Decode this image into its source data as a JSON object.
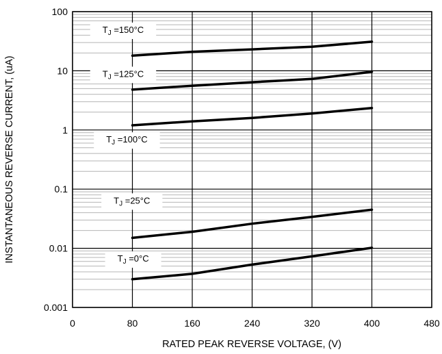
{
  "chart_data": {
    "type": "line",
    "title": "",
    "xlabel": "RATED PEAK REVERSE VOLTAGE, (V)",
    "ylabel": "INSTANTANEOUS REVERSE CURRENT, (uA)",
    "xlim": [
      0,
      480
    ],
    "ylim": [
      0.001,
      100
    ],
    "yscale": "log",
    "grid": true,
    "x_ticks": [
      "0",
      "80",
      "160",
      "240",
      "320",
      "400",
      "480"
    ],
    "y_ticks": [
      "100",
      "10",
      "1",
      "0.1",
      "0.01",
      "0.001"
    ],
    "series": [
      {
        "name": "T",
        "sub": "J",
        "suffix": " =150°C",
        "label_at": {
          "x": 40,
          "y": 50
        },
        "x": [
          80,
          160,
          240,
          320,
          400
        ],
        "values": [
          18,
          21,
          23,
          25.5,
          31
        ]
      },
      {
        "name": "T",
        "sub": "J",
        "suffix": " =125°C",
        "label_at": {
          "x": 40,
          "y": 9
        },
        "x": [
          80,
          160,
          240,
          320,
          400
        ],
        "values": [
          4.8,
          5.6,
          6.4,
          7.3,
          9.6
        ]
      },
      {
        "name": "T",
        "sub": "J",
        "suffix": " =100°C",
        "label_at": {
          "x": 45,
          "y": 0.7
        },
        "x": [
          80,
          160,
          240,
          320,
          400
        ],
        "values": [
          1.2,
          1.4,
          1.6,
          1.9,
          2.35
        ]
      },
      {
        "name": "T",
        "sub": "J",
        "suffix": " =25°C",
        "label_at": {
          "x": 55,
          "y": 0.065
        },
        "x": [
          80,
          160,
          240,
          320,
          400
        ],
        "values": [
          0.015,
          0.019,
          0.026,
          0.034,
          0.045
        ]
      },
      {
        "name": "T",
        "sub": "J",
        "suffix": " =0°C",
        "label_at": {
          "x": 60,
          "y": 0.0068
        },
        "x": [
          80,
          160,
          240,
          320,
          400
        ],
        "values": [
          0.003,
          0.0037,
          0.0053,
          0.0073,
          0.0102
        ]
      }
    ],
    "colors": {
      "line": "#000000",
      "grid_major": "#000000",
      "grid_minor": "#b4b4b4",
      "background": "#ffffff"
    }
  }
}
